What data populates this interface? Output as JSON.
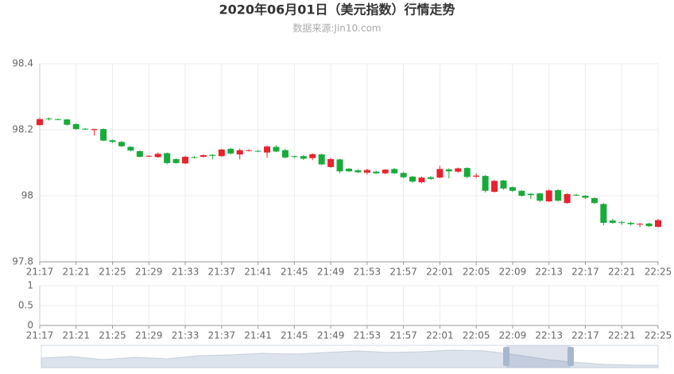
{
  "chart_data": [
    {
      "type": "candlestick",
      "title": "2020年06月01日（美元指数）行情走势",
      "subtitle": "数据来源:Jin10.com",
      "categories": [
        "21:17",
        null,
        null,
        null,
        "21:21",
        null,
        null,
        null,
        "21:25",
        null,
        null,
        null,
        "21:29",
        null,
        null,
        null,
        "21:33",
        null,
        null,
        null,
        "21:37",
        null,
        null,
        null,
        "21:41",
        null,
        null,
        null,
        "21:45",
        null,
        null,
        null,
        "21:49",
        null,
        null,
        null,
        "21:53",
        null,
        null,
        null,
        "21:57",
        null,
        null,
        null,
        "22:01",
        null,
        null,
        null,
        "22:05",
        null,
        null,
        null,
        "22:09",
        null,
        null,
        null,
        "22:13",
        null,
        null,
        null,
        "22:17",
        null,
        null,
        null,
        "22:21",
        null,
        null,
        null,
        "22:25"
      ],
      "open": [
        98.214,
        98.234,
        98.232,
        98.231,
        98.217,
        98.203,
        98.199,
        98.202,
        98.168,
        98.163,
        98.148,
        98.135,
        98.119,
        98.117,
        98.129,
        98.111,
        98.098,
        98.117,
        98.118,
        98.124,
        98.12,
        98.142,
        98.125,
        98.137,
        98.136,
        98.131,
        98.148,
        98.138,
        98.12,
        98.12,
        98.114,
        98.125,
        98.087,
        98.11,
        98.082,
        98.077,
        98.07,
        98.073,
        98.068,
        98.081,
        98.069,
        98.058,
        98.041,
        98.056,
        98.055,
        98.08,
        98.073,
        98.084,
        98.058,
        98.06,
        98.012,
        98.046,
        98.026,
        98.015,
        98.006,
        98.007,
        97.983,
        98.017,
        97.978,
        98.003,
        98.0,
        97.993,
        97.975,
        97.925,
        97.92,
        97.918,
        97.913,
        97.916,
        97.906
      ],
      "high": [
        98.236,
        98.237,
        98.234,
        98.233,
        98.219,
        98.205,
        98.203,
        98.204,
        98.17,
        98.166,
        98.15,
        98.137,
        98.123,
        98.131,
        98.131,
        98.113,
        98.121,
        98.12,
        98.125,
        98.126,
        98.142,
        98.145,
        98.143,
        98.14,
        98.138,
        98.152,
        98.153,
        98.142,
        98.122,
        98.124,
        98.128,
        98.128,
        98.115,
        98.112,
        98.084,
        98.08,
        98.082,
        98.076,
        98.081,
        98.084,
        98.072,
        98.06,
        98.058,
        98.06,
        98.091,
        98.083,
        98.085,
        98.086,
        98.068,
        98.063,
        98.048,
        98.048,
        98.028,
        98.017,
        98.008,
        98.009,
        98.019,
        98.02,
        98.008,
        98.006,
        98.002,
        97.995,
        97.978,
        97.93,
        97.924,
        97.922,
        97.918,
        97.918,
        97.93
      ],
      "low": [
        98.212,
        98.228,
        98.229,
        98.212,
        98.2,
        98.2,
        98.182,
        98.165,
        98.16,
        98.147,
        98.134,
        98.116,
        98.117,
        98.115,
        98.095,
        98.097,
        98.096,
        98.113,
        98.116,
        98.11,
        98.118,
        98.125,
        98.11,
        98.134,
        98.132,
        98.115,
        98.132,
        98.113,
        98.114,
        98.109,
        98.108,
        98.093,
        98.085,
        98.068,
        98.072,
        98.069,
        98.064,
        98.066,
        98.065,
        98.066,
        98.053,
        98.039,
        98.038,
        98.048,
        98.053,
        98.053,
        98.07,
        98.053,
        98.054,
        98.01,
        98.01,
        98.018,
        98.012,
        97.997,
        97.99,
        97.981,
        97.981,
        97.983,
        97.976,
        97.999,
        97.99,
        97.975,
        97.91,
        97.915,
        97.912,
        97.91,
        97.905,
        97.905,
        97.904
      ],
      "close": [
        98.232,
        98.233,
        98.231,
        98.215,
        98.202,
        98.202,
        98.202,
        98.167,
        98.163,
        98.15,
        98.137,
        98.118,
        98.121,
        98.127,
        98.099,
        98.099,
        98.118,
        98.116,
        98.123,
        98.121,
        98.14,
        98.128,
        98.138,
        98.138,
        98.134,
        98.149,
        98.134,
        98.116,
        98.118,
        98.112,
        98.126,
        98.095,
        98.111,
        98.074,
        98.074,
        98.071,
        98.078,
        98.068,
        98.079,
        98.068,
        98.056,
        98.043,
        98.055,
        98.051,
        98.081,
        98.074,
        98.083,
        98.057,
        98.061,
        98.015,
        98.045,
        98.022,
        98.015,
        98.0,
        98.002,
        97.985,
        98.016,
        97.985,
        98.005,
        98.002,
        97.994,
        97.978,
        97.918,
        97.918,
        97.918,
        97.914,
        97.915,
        97.908,
        97.926
      ],
      "up_color": "#e8222e",
      "down_color": "#17ab3a",
      "ylim": [
        97.8,
        98.4
      ],
      "yticks": [
        97.8,
        98,
        98.2,
        98.4
      ],
      "grid": true
    },
    {
      "type": "bar",
      "categories": [
        "21:17",
        null,
        null,
        null,
        "21:21",
        null,
        null,
        null,
        "21:25",
        null,
        null,
        null,
        "21:29",
        null,
        null,
        null,
        "21:33",
        null,
        null,
        null,
        "21:37",
        null,
        null,
        null,
        "21:41",
        null,
        null,
        null,
        "21:45",
        null,
        null,
        null,
        "21:49",
        null,
        null,
        null,
        "21:53",
        null,
        null,
        null,
        "21:57",
        null,
        null,
        null,
        "22:01",
        null,
        null,
        null,
        "22:05",
        null,
        null,
        null,
        "22:09",
        null,
        null,
        null,
        "22:13",
        null,
        null,
        null,
        "22:17",
        null,
        null,
        null,
        "22:21",
        null,
        null,
        null,
        "22:25"
      ],
      "ylim": [
        0,
        1
      ],
      "yticks": [
        0,
        0.5,
        1
      ],
      "grid": true
    }
  ]
}
